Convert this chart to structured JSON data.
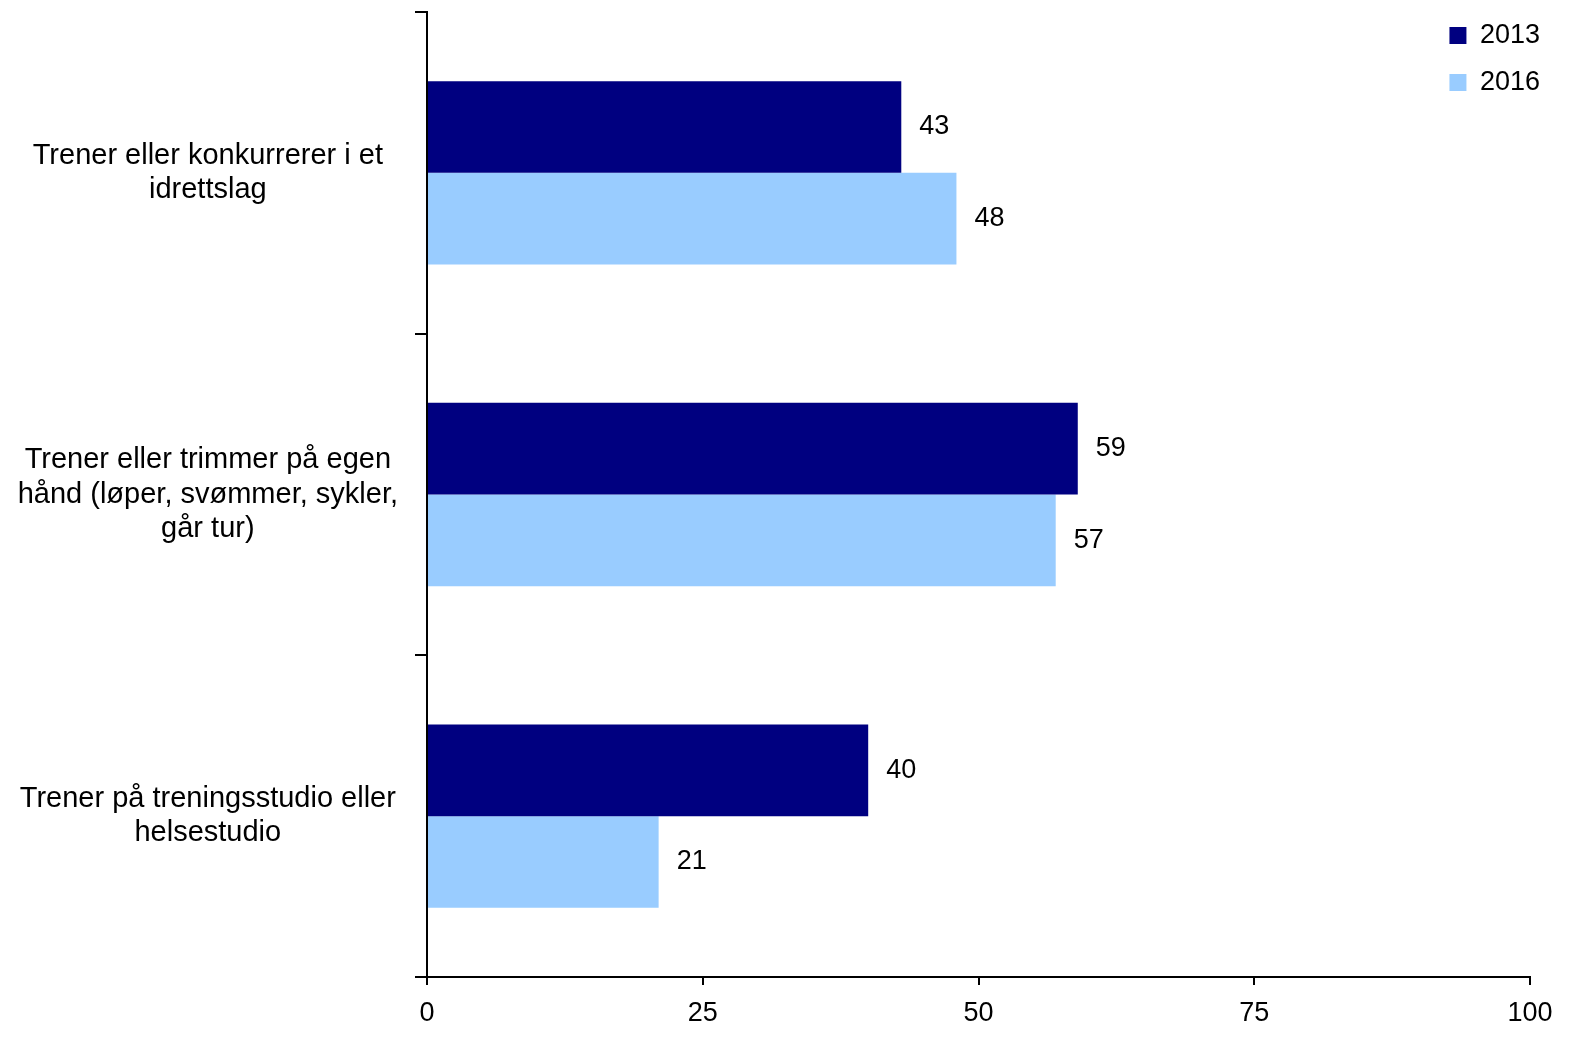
{
  "chart_data": {
    "type": "bar",
    "orientation": "horizontal",
    "categories": [
      "Trener eller konkurrerer i et idrettslag",
      "Trener eller trimmer på egen hånd (løper, svømmer, sykler, går tur)",
      "Trener på treningsstudio eller helsestudio"
    ],
    "series": [
      {
        "name": "2013",
        "color": "#000080",
        "values": [
          43,
          59,
          40
        ]
      },
      {
        "name": "2016",
        "color": "#99ccff",
        "values": [
          48,
          57,
          21
        ]
      }
    ],
    "xlim": [
      0,
      100
    ],
    "xticks": [
      0,
      25,
      50,
      75,
      100
    ],
    "grid": false,
    "legend": "top right",
    "data_labels": true
  }
}
